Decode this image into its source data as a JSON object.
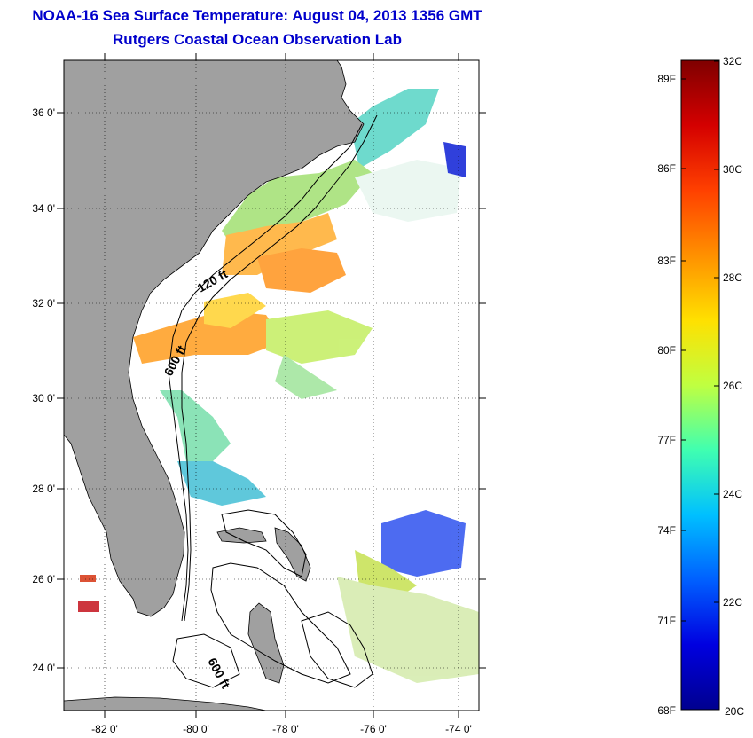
{
  "title": {
    "line1": "NOAA-16 Sea Surface Temperature:  August 04, 2013 1356 GMT",
    "line2": "Rutgers Coastal Ocean Observation Lab"
  },
  "map": {
    "lat_ticks": [
      "36 0'",
      "34 0'",
      "32 0'",
      "30 0'",
      "28 0'",
      "26 0'",
      "24 0'"
    ],
    "lon_ticks": [
      "-82 0'",
      "-80 0'",
      "-78 0'",
      "-76 0'",
      "-74 0'"
    ],
    "contour_labels": [
      "120 ft",
      "600 ft",
      "600 ft"
    ]
  },
  "colorbar": {
    "f_labels": [
      "89F",
      "86F",
      "83F",
      "80F",
      "77F",
      "74F",
      "71F",
      "68F"
    ],
    "c_labels": [
      "32C",
      "30C",
      "28C",
      "26C",
      "24C",
      "22C",
      "20C"
    ],
    "colors": [
      "#7f0000",
      "#d40000",
      "#ff4000",
      "#ff9000",
      "#ffe000",
      "#c0ff40",
      "#40ffb0",
      "#00c0ff",
      "#0060ff",
      "#0000e0",
      "#00008f"
    ]
  }
}
